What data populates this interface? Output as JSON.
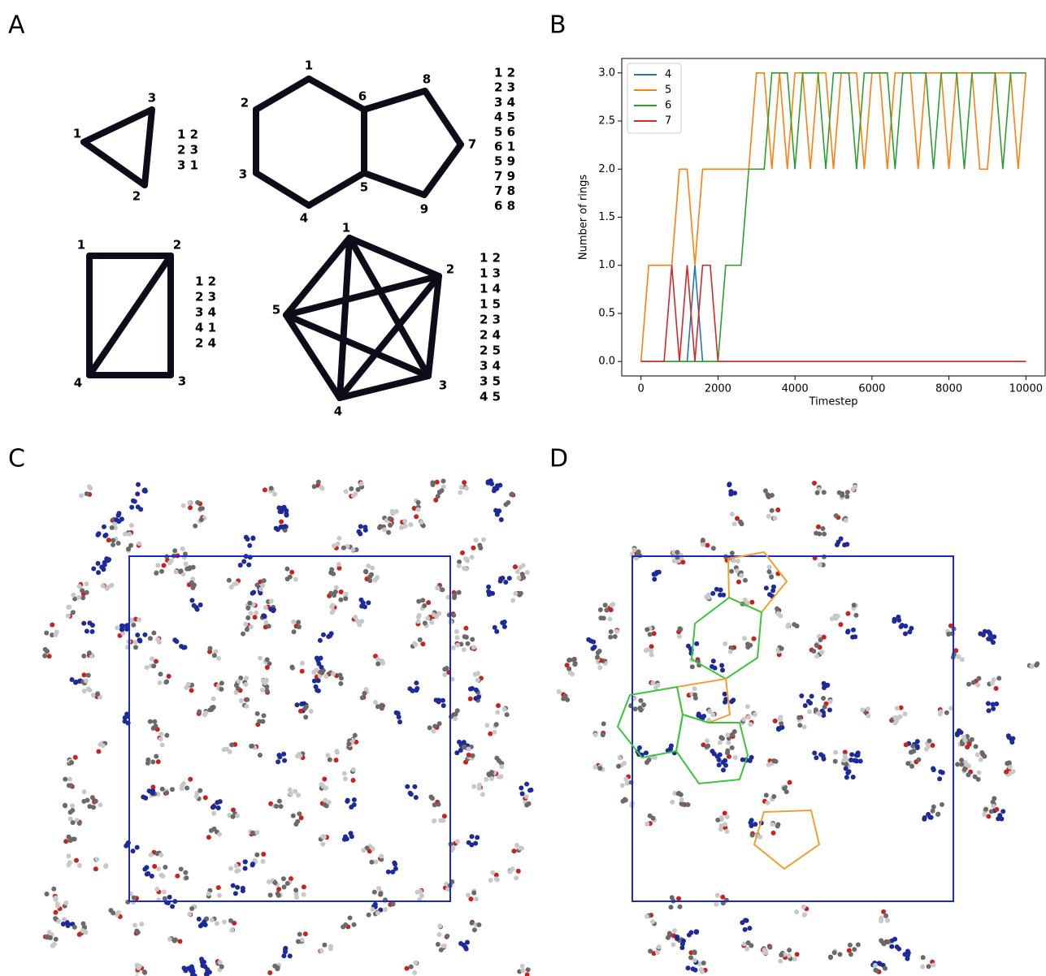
{
  "panels": {
    "a": "A",
    "b": "B",
    "c": "C",
    "d": "D"
  },
  "graphs": [
    {
      "nodes": [
        "1",
        "2",
        "3"
      ],
      "edges": [
        "1 2",
        "2 3",
        "3 1"
      ]
    },
    {
      "nodes": [
        "1",
        "2",
        "3",
        "4",
        "5",
        "6",
        "7",
        "8",
        "9"
      ],
      "edges": [
        "1 2",
        "2 3",
        "3 4",
        "4 5",
        "5 6",
        "6 1",
        "5 9",
        "7 9",
        "7 8",
        "6 8"
      ]
    },
    {
      "nodes": [
        "1",
        "2",
        "3",
        "4"
      ],
      "edges": [
        "1 2",
        "2 3",
        "3 4",
        "4 1",
        "2 4"
      ]
    },
    {
      "nodes": [
        "1",
        "2",
        "3",
        "4",
        "5"
      ],
      "edges": [
        "1 2",
        "1 3",
        "1 4",
        "1 5",
        "2 3",
        "2 4",
        "2 5",
        "3 4",
        "3 5",
        "4 5"
      ]
    }
  ],
  "chart_data": {
    "type": "line",
    "xlabel": "Timestep",
    "ylabel": "Number of rings",
    "x": [
      0,
      200,
      400,
      600,
      800,
      1000,
      1200,
      1400,
      1600,
      1800,
      2000,
      2200,
      2400,
      2600,
      2800,
      3000,
      3200,
      3400,
      3600,
      3800,
      4000,
      4200,
      4400,
      4600,
      4800,
      5000,
      5200,
      5400,
      5600,
      5800,
      6000,
      6200,
      6400,
      6600,
      6800,
      7000,
      7200,
      7400,
      7600,
      7800,
      8000,
      8200,
      8400,
      8600,
      8800,
      9000,
      9200,
      9400,
      9600,
      9800,
      10000
    ],
    "series": [
      {
        "name": "4",
        "color": "#1f77b4",
        "values": [
          0,
          0,
          0,
          0,
          0,
          0,
          0,
          1,
          0,
          0,
          0,
          0,
          0,
          0,
          0,
          0,
          0,
          0,
          0,
          0,
          0,
          0,
          0,
          0,
          0,
          0,
          0,
          0,
          0,
          0,
          0,
          0,
          0,
          0,
          0,
          0,
          0,
          0,
          0,
          0,
          0,
          0,
          0,
          0,
          0,
          0,
          0,
          0,
          0,
          0,
          0
        ]
      },
      {
        "name": "5",
        "color": "#ff7f0e",
        "values": [
          0,
          1,
          1,
          1,
          1,
          2,
          2,
          1,
          2,
          2,
          2,
          2,
          2,
          2,
          2,
          3,
          3,
          2,
          3,
          2,
          3,
          3,
          2,
          3,
          3,
          2,
          3,
          3,
          3,
          2,
          3,
          3,
          2,
          3,
          3,
          3,
          2,
          3,
          3,
          3,
          2,
          3,
          3,
          3,
          2,
          2,
          3,
          3,
          3,
          2,
          3
        ]
      },
      {
        "name": "6",
        "color": "#2ca02c",
        "values": [
          0,
          0,
          0,
          0,
          0,
          0,
          0,
          0,
          0,
          0,
          0,
          1,
          1,
          1,
          2,
          2,
          2,
          3,
          3,
          3,
          2,
          3,
          3,
          3,
          2,
          3,
          3,
          3,
          2,
          3,
          3,
          3,
          3,
          2,
          3,
          3,
          3,
          3,
          2,
          3,
          3,
          3,
          2,
          3,
          3,
          3,
          3,
          2,
          3,
          3,
          3
        ]
      },
      {
        "name": "7",
        "color": "#d62728",
        "values": [
          0,
          0,
          0,
          0,
          1,
          0,
          1,
          0,
          1,
          1,
          0,
          0,
          0,
          0,
          0,
          0,
          0,
          0,
          0,
          0,
          0,
          0,
          0,
          0,
          0,
          0,
          0,
          0,
          0,
          0,
          0,
          0,
          0,
          0,
          0,
          0,
          0,
          0,
          0,
          0,
          0,
          0,
          0,
          0,
          0,
          0,
          0,
          0,
          0,
          0,
          0
        ]
      }
    ],
    "xlim": [
      -500,
      10500
    ],
    "ylim": [
      -0.15,
      3.15
    ],
    "xticks": [
      0,
      2000,
      4000,
      6000,
      8000,
      10000
    ],
    "yticks": [
      {
        "value": 0,
        "label": "0.0"
      },
      {
        "value": 0.5,
        "label": "0.5"
      },
      {
        "value": 1,
        "label": "1.0"
      },
      {
        "value": 1.5,
        "label": "1.5"
      },
      {
        "value": 2,
        "label": "2.0"
      },
      {
        "value": 2.5,
        "label": "2.5"
      },
      {
        "value": 3,
        "label": "3.0"
      }
    ],
    "legend": "upper left"
  }
}
